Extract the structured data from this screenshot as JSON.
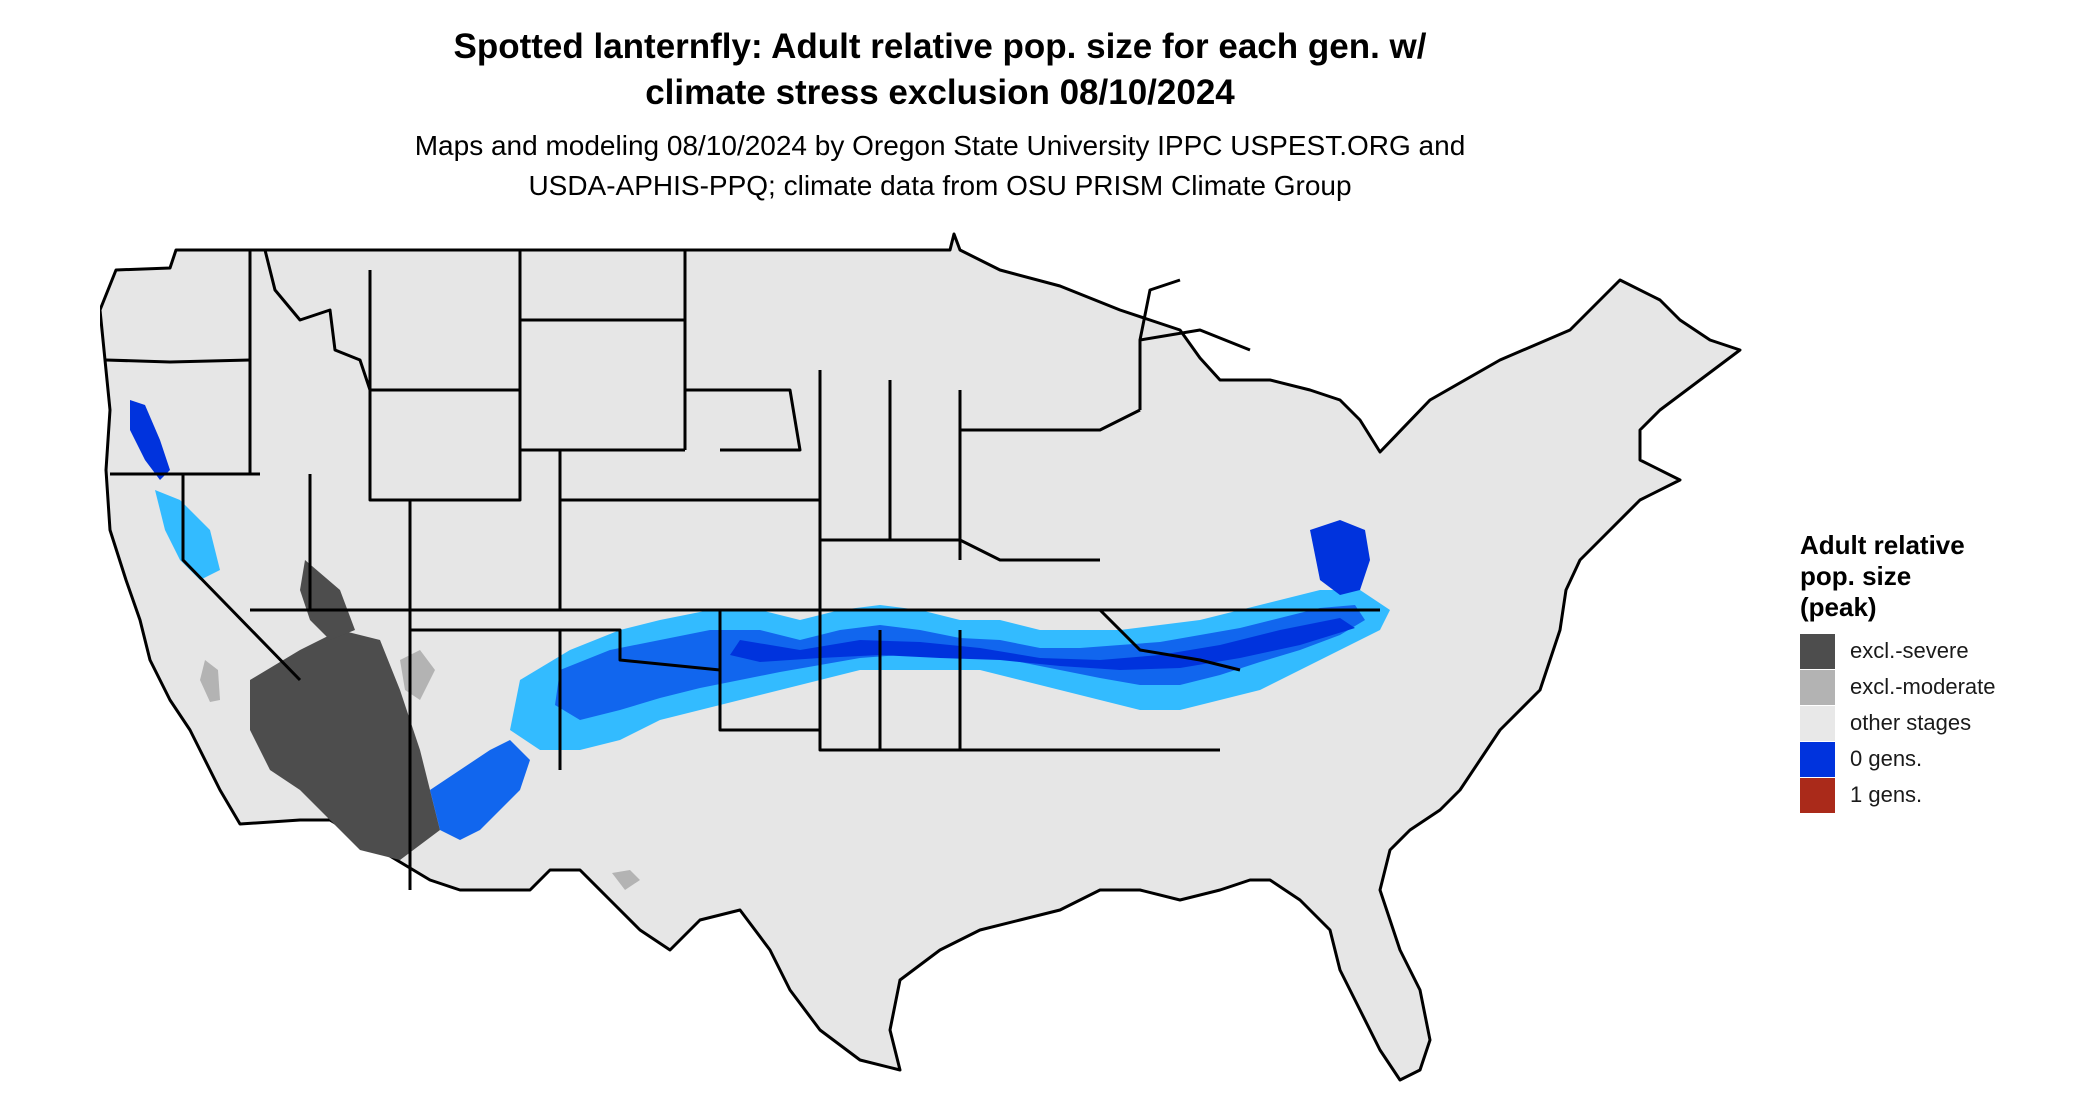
{
  "title_line1": "Spotted lanternfly: Adult relative pop. size for each gen. w/",
  "title_line2": "climate stress exclusion 08/10/2024",
  "subtitle_line1": "Maps and modeling 08/10/2024 by Oregon State University IPPC USPEST.ORG and",
  "subtitle_line2": "USDA-APHIS-PPQ; climate data from OSU PRISM Climate Group",
  "legend": {
    "title_line1": "Adult relative",
    "title_line2": "pop. size",
    "title_line3": "(peak)",
    "items": [
      {
        "label": "excl.-severe",
        "color": "#4d4d4d"
      },
      {
        "label": "excl.-moderate",
        "color": "#b3b3b3"
      },
      {
        "label": "other stages",
        "color": "#e8e8e8"
      },
      {
        "label": "0 gens.",
        "color": "#0033dd"
      },
      {
        "label": "1 gens.",
        "color": "#aa2a1a"
      }
    ]
  },
  "colors": {
    "land": "#e6e6e6",
    "border": "#000000",
    "blue_dark": "#0033dd",
    "blue_mid": "#1166ee",
    "blue_light": "#33bbff",
    "excl_severe": "#4d4d4d",
    "excl_moderate": "#b3b3b3"
  }
}
